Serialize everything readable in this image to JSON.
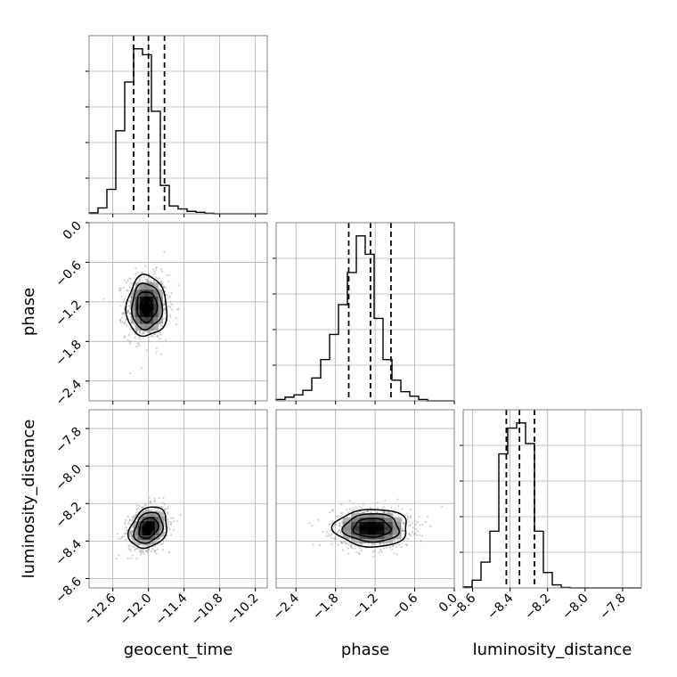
{
  "chart_data": {
    "type": "corner",
    "title": "",
    "parameters": [
      {
        "name": "geocent_time",
        "range": [
          -13.0,
          -10.0
        ],
        "ticks": [
          -12.6,
          -12.0,
          -11.4,
          -10.8,
          -10.2
        ],
        "tick_labels": [
          "−12.6",
          "−12.0",
          "−11.4",
          "−10.8",
          "−10.2"
        ],
        "quantiles": [
          -12.25,
          -12.0,
          -11.73
        ],
        "histogram": {
          "edges": [
            -13.0,
            -12.85,
            -12.7,
            -12.55,
            -12.4,
            -12.25,
            -12.1,
            -11.95,
            -11.8,
            -11.65,
            -11.5,
            -11.35,
            -11.2,
            -11.05,
            -10.9,
            -10.75,
            -10.6,
            -10.45,
            -10.3,
            -10.15,
            -10.0
          ],
          "counts": [
            0.2,
            1.2,
            5.0,
            17.0,
            27.0,
            33.8,
            32.6,
            21.0,
            5.8,
            1.6,
            1.0,
            0.5,
            0.3,
            0.1,
            0,
            0,
            0,
            0,
            0,
            0
          ]
        }
      },
      {
        "name": "phase",
        "range": [
          -2.7,
          0.0
        ],
        "ticks": [
          -2.4,
          -1.8,
          -1.2,
          -0.6,
          0.0
        ],
        "tick_labels": [
          "−2.4",
          "−1.8",
          "−1.2",
          "−0.6",
          "0.0"
        ],
        "quantiles": [
          -1.6,
          -1.27,
          -0.96
        ],
        "histogram": {
          "edges": [
            -2.7,
            -2.565,
            -2.43,
            -2.295,
            -2.16,
            -2.025,
            -1.89,
            -1.755,
            -1.62,
            -1.485,
            -1.35,
            -1.215,
            -1.08,
            -0.945,
            -0.81,
            -0.675,
            -0.54,
            -0.405,
            -0.27,
            -0.135,
            0.0
          ],
          "counts": [
            0.3,
            0.8,
            1.3,
            2.3,
            5.0,
            9.0,
            14.5,
            21.0,
            28.0,
            36.0,
            32.0,
            18.0,
            9.0,
            4.5,
            2.0,
            1.0,
            0.3,
            0,
            0,
            0
          ]
        }
      },
      {
        "name": "luminosity_distance",
        "range": [
          -8.65,
          -7.7
        ],
        "ticks": [
          -8.6,
          -8.4,
          -8.2,
          -8.0,
          -7.8
        ],
        "tick_labels": [
          "−8.6",
          "−8.4",
          "−8.2",
          "−8.0",
          "−7.8"
        ],
        "quantiles": [
          -8.42,
          -8.35,
          -8.27
        ],
        "histogram": {
          "edges": [
            -8.65,
            -8.6025,
            -8.555,
            -8.5075,
            -8.46,
            -8.4125,
            -8.365,
            -8.3175,
            -8.27,
            -8.2225,
            -8.175,
            -8.1275,
            -8.08,
            -8.0325,
            -7.985,
            -7.9375,
            -7.89,
            -7.8425,
            -7.795,
            -7.7475,
            -7.7
          ],
          "counts": [
            0.2,
            1.5,
            5.0,
            11.0,
            26.0,
            31.0,
            32.0,
            28.0,
            11.0,
            3.0,
            0.6,
            0.1,
            0,
            0,
            0,
            0,
            0,
            0,
            0,
            0
          ]
        }
      }
    ],
    "pairs": [
      {
        "x": "geocent_time",
        "y": "phase",
        "center": [
          -12.03,
          -1.27
        ],
        "spread": [
          0.17,
          0.23
        ],
        "correlation": 0.0,
        "n_points": 900
      },
      {
        "x": "geocent_time",
        "y": "luminosity_distance",
        "center": [
          -12.0,
          -8.33
        ],
        "spread": [
          0.16,
          0.055
        ],
        "correlation": 0.25,
        "n_points": 900
      },
      {
        "x": "phase",
        "y": "luminosity_distance",
        "center": [
          -1.25,
          -8.33
        ],
        "spread": [
          0.28,
          0.05
        ],
        "correlation": 0.0,
        "n_points": 900
      }
    ],
    "contour_levels_sigma": [
      0.5,
      1.0,
      1.5,
      2.0
    ],
    "grid": true,
    "colors": {
      "line": "#000000",
      "grid": "#b0b0b0",
      "points": "#7f7f7f",
      "frame": "#808080"
    }
  }
}
